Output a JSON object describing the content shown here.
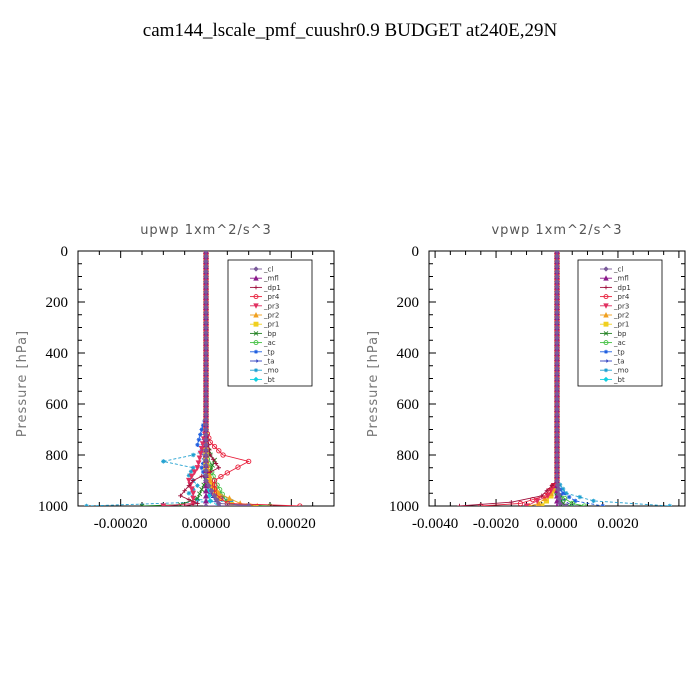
{
  "title": "cam144_lscale_pmf_cuushr0.9  BUDGET at240E,29N",
  "chart_data": [
    {
      "type": "line",
      "title": "upwp   1xm^2/s^3",
      "ylabel": "Pressure [hPa]",
      "xlim": [
        -0.0003,
        0.0003
      ],
      "ylim": [
        1000,
        0
      ],
      "xticks": [
        "-0.00020",
        "0.00000",
        "0.00020"
      ],
      "xtick_values": [
        -0.0002,
        0,
        0.0002
      ],
      "yticks": [
        "0",
        "200",
        "400",
        "600",
        "800",
        "1000"
      ],
      "ytick_values": [
        0,
        200,
        400,
        600,
        800,
        1000
      ],
      "legend_position": "top-right",
      "series": [
        {
          "name": "_cl",
          "color": "#7a5a9a",
          "marker": "diamond",
          "points": [
            [
              0,
              0
            ],
            [
              0,
              500
            ],
            [
              0,
              900
            ],
            [
              2e-05,
              960
            ],
            [
              3e-05,
              990
            ],
            [
              0.0001,
              998
            ],
            [
              0,
              1000
            ]
          ]
        },
        {
          "name": "_mfl",
          "color": "#8b1a8b",
          "marker": "triangle",
          "points": [
            [
              0,
              0
            ],
            [
              0,
              500
            ],
            [
              0,
              900
            ],
            [
              0,
              1000
            ]
          ]
        },
        {
          "name": "_dp1",
          "color": "#a0103c",
          "marker": "plus",
          "points": [
            [
              0,
              0
            ],
            [
              0,
              700
            ],
            [
              1e-05,
              800
            ],
            [
              3e-05,
              850
            ],
            [
              -3e-05,
              900
            ],
            [
              -6e-05,
              960
            ],
            [
              -2e-05,
              990
            ],
            [
              -5e-05,
              1000
            ]
          ]
        },
        {
          "name": "_pr4",
          "color": "#e8203c",
          "marker": "circle",
          "points": [
            [
              0,
              0
            ],
            [
              0,
              700
            ],
            [
              1e-05,
              750
            ],
            [
              4e-05,
              800
            ],
            [
              0.0001,
              825
            ],
            [
              5e-05,
              870
            ],
            [
              2e-05,
              900
            ],
            [
              2e-05,
              950
            ],
            [
              5e-05,
              990
            ],
            [
              0.00022,
              1000
            ]
          ]
        },
        {
          "name": "_pr3",
          "color": "#e03060",
          "marker": "triangle-down",
          "points": [
            [
              0,
              0
            ],
            [
              0,
              700
            ],
            [
              -2e-05,
              850
            ],
            [
              -4e-05,
              900
            ],
            [
              -3e-05,
              950
            ],
            [
              -3e-05,
              990
            ],
            [
              -0.0001,
              1000
            ]
          ]
        },
        {
          "name": "_pr2",
          "color": "#f0a020",
          "marker": "triangle",
          "points": [
            [
              0,
              0
            ],
            [
              0,
              800
            ],
            [
              1e-05,
              900
            ],
            [
              3e-05,
              950
            ],
            [
              8e-05,
              990
            ],
            [
              0.00012,
              1000
            ]
          ]
        },
        {
          "name": "_pr1",
          "color": "#f0d020",
          "marker": "square",
          "points": [
            [
              0,
              0
            ],
            [
              0,
              850
            ],
            [
              1e-05,
              920
            ],
            [
              3e-05,
              970
            ],
            [
              6e-05,
              995
            ],
            [
              0.0001,
              1000
            ]
          ]
        },
        {
          "name": "_bp",
          "color": "#208020",
          "marker": "cross",
          "points": [
            [
              0,
              0
            ],
            [
              0,
              750
            ],
            [
              1e-05,
              800
            ],
            [
              2e-05,
              820
            ],
            [
              1e-05,
              860
            ],
            [
              0,
              900
            ],
            [
              -2e-05,
              970
            ],
            [
              -6e-05,
              995
            ],
            [
              -0.00015,
              1000
            ]
          ]
        },
        {
          "name": "_ac",
          "color": "#40c040",
          "marker": "circle",
          "points": [
            [
              0,
              0
            ],
            [
              0,
              800
            ],
            [
              1e-05,
              850
            ],
            [
              2e-05,
              900
            ],
            [
              5e-05,
              990
            ],
            [
              0.00015,
              1000
            ]
          ]
        },
        {
          "name": "_tp",
          "color": "#2060e0",
          "marker": "star",
          "points": [
            [
              0,
              0
            ],
            [
              0,
              650
            ],
            [
              -1e-05,
              700
            ],
            [
              -2e-05,
              760
            ],
            [
              0,
              800
            ],
            [
              -1e-05,
              850
            ],
            [
              0,
              900
            ],
            [
              3e-05,
              950
            ],
            [
              5e-05,
              980
            ],
            [
              8e-05,
              1000
            ]
          ]
        },
        {
          "name": "_ta",
          "color": "#3040c0",
          "marker": "arrow",
          "points": [
            [
              0,
              0
            ],
            [
              0,
              700
            ],
            [
              -1e-05,
              780
            ],
            [
              0,
              850
            ],
            [
              1e-05,
              950
            ],
            [
              3e-05,
              1000
            ]
          ]
        },
        {
          "name": "_mo",
          "color": "#20a0d0",
          "marker": "asterisk",
          "points": [
            [
              0,
              0
            ],
            [
              0,
              780
            ],
            [
              -3e-05,
              800
            ],
            [
              -0.0001,
              825
            ],
            [
              -3e-05,
              850
            ],
            [
              -4e-05,
              880
            ],
            [
              -2e-05,
              920
            ],
            [
              -4e-05,
              950
            ],
            [
              -2e-05,
              975
            ],
            [
              6e-05,
              980
            ],
            [
              -0.00028,
              1000
            ]
          ]
        },
        {
          "name": "_bt",
          "color": "#10d0e0",
          "marker": "diamond",
          "points": [
            [
              0,
              0
            ],
            [
              0,
              900
            ],
            [
              1e-05,
              980
            ],
            [
              3e-05,
              1000
            ]
          ]
        }
      ]
    },
    {
      "type": "line",
      "title": "vpwp   1xm^2/s^3",
      "ylabel": "Pressure [hPa]",
      "xlim": [
        -0.0042,
        0.0042
      ],
      "ylim": [
        1000,
        0
      ],
      "xticks": [
        "-0.0040",
        "-0.0020",
        "0.0000",
        "0.0020"
      ],
      "xtick_values": [
        -0.004,
        -0.002,
        0,
        0.002
      ],
      "yticks": [
        "0",
        "200",
        "400",
        "600",
        "800",
        "1000"
      ],
      "ytick_values": [
        0,
        200,
        400,
        600,
        800,
        1000
      ],
      "legend_position": "top-right",
      "series": [
        {
          "name": "_cl",
          "color": "#7a5a9a",
          "marker": "diamond",
          "points": [
            [
              0,
              0
            ],
            [
              0,
              900
            ],
            [
              0.0001,
              990
            ],
            [
              0.0003,
              1000
            ]
          ]
        },
        {
          "name": "_mfl",
          "color": "#8b1a8b",
          "marker": "triangle",
          "points": [
            [
              0,
              0
            ],
            [
              0,
              1000
            ]
          ]
        },
        {
          "name": "_dp1",
          "color": "#a0103c",
          "marker": "plus",
          "points": [
            [
              0,
              0
            ],
            [
              0,
              900
            ],
            [
              -0.0005,
              960
            ],
            [
              -0.0015,
              985
            ],
            [
              -0.0032,
              1000
            ]
          ]
        },
        {
          "name": "_pr4",
          "color": "#e8203c",
          "marker": "circle",
          "points": [
            [
              0,
              0
            ],
            [
              0,
              900
            ],
            [
              -0.0004,
              960
            ],
            [
              -0.0012,
              990
            ],
            [
              -0.0025,
              1000
            ]
          ]
        },
        {
          "name": "_pr3",
          "color": "#e03060",
          "marker": "triangle-down",
          "points": [
            [
              0,
              0
            ],
            [
              0,
              900
            ],
            [
              -0.0003,
              960
            ],
            [
              -0.001,
              1000
            ]
          ]
        },
        {
          "name": "_pr2",
          "color": "#f0a020",
          "marker": "triangle",
          "points": [
            [
              0,
              0
            ],
            [
              0,
              900
            ],
            [
              -0.0002,
              950
            ],
            [
              -0.0006,
              990
            ],
            [
              -0.0009,
              1000
            ]
          ]
        },
        {
          "name": "_pr1",
          "color": "#f0d020",
          "marker": "square",
          "points": [
            [
              0,
              0
            ],
            [
              0,
              900
            ],
            [
              -0.0002,
              960
            ],
            [
              -0.0005,
              1000
            ]
          ]
        },
        {
          "name": "_bp",
          "color": "#208020",
          "marker": "cross",
          "points": [
            [
              0,
              0
            ],
            [
              0,
              950
            ],
            [
              0.0002,
              990
            ],
            [
              0.0004,
              1000
            ]
          ]
        },
        {
          "name": "_ac",
          "color": "#40c040",
          "marker": "circle",
          "points": [
            [
              0,
              0
            ],
            [
              0,
              950
            ],
            [
              0.0005,
              990
            ],
            [
              0.0009,
              1000
            ]
          ]
        },
        {
          "name": "_tp",
          "color": "#2060e0",
          "marker": "star",
          "points": [
            [
              0,
              0
            ],
            [
              0,
              920
            ],
            [
              0.0002,
              950
            ],
            [
              0.0006,
              980
            ],
            [
              0.0015,
              1000
            ]
          ]
        },
        {
          "name": "_ta",
          "color": "#3040c0",
          "marker": "arrow",
          "points": [
            [
              0,
              0
            ],
            [
              0,
              940
            ],
            [
              0.0002,
              975
            ],
            [
              0.0005,
              1000
            ]
          ]
        },
        {
          "name": "_mo",
          "color": "#20a0d0",
          "marker": "asterisk",
          "points": [
            [
              0,
              0
            ],
            [
              0,
              900
            ],
            [
              0.0003,
              950
            ],
            [
              0.0012,
              980
            ],
            [
              0.0037,
              1000
            ]
          ]
        },
        {
          "name": "_bt",
          "color": "#10d0e0",
          "marker": "diamond",
          "points": [
            [
              0,
              0
            ],
            [
              0,
              950
            ],
            [
              0.0001,
              980
            ],
            [
              0.0003,
              1000
            ]
          ]
        }
      ]
    }
  ]
}
